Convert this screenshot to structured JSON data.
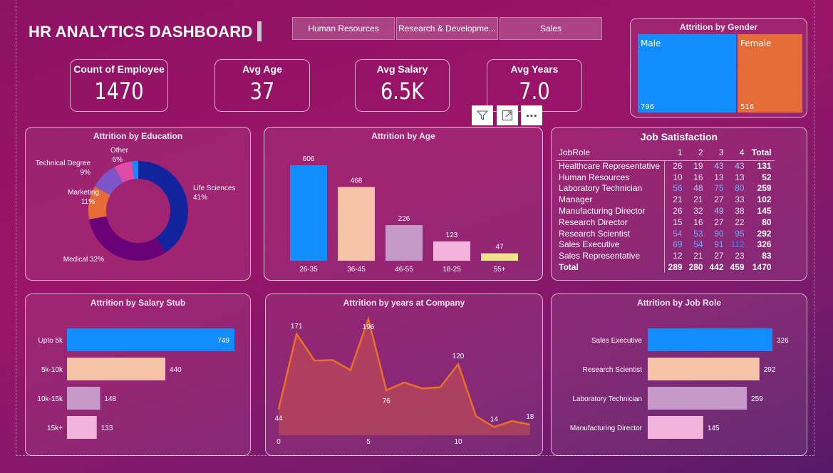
{
  "header": {
    "title": "HR ANALYTICS DASHBOARD",
    "slicers": [
      "Human Resources",
      "Research & Developme...",
      "Sales"
    ]
  },
  "kpis": [
    {
      "label": "Count of Employee",
      "value": "1470"
    },
    {
      "label": "Avg Age",
      "value": "37"
    },
    {
      "label": "Avg Salary",
      "value": "6.5K"
    },
    {
      "label": "Avg Years",
      "value": "7.0"
    }
  ],
  "visual_header": {
    "icons": [
      "filter-icon",
      "focus-mode-icon",
      "more-options-icon"
    ],
    "more": "⋯"
  },
  "gender": {
    "title": "Attrition by Gender",
    "items": [
      {
        "label": "Male",
        "value": "796",
        "color": "#118dff"
      },
      {
        "label": "Female",
        "value": "516",
        "color": "#e66c37"
      }
    ]
  },
  "chart_data": [
    {
      "type": "pie",
      "title": "Attrition by Education",
      "donut": true,
      "slices": [
        {
          "label": "Life Sciences",
          "pct": "41%",
          "value": 41,
          "color": "#12239e"
        },
        {
          "label": "Medical",
          "pct": "32%",
          "value": 32,
          "color": "#6a0078"
        },
        {
          "label": "Marketing",
          "pct": "11%",
          "value": 11,
          "color": "#e66c37"
        },
        {
          "label": "Technical Degree",
          "pct": "9%",
          "value": 9,
          "color": "#7c55c8"
        },
        {
          "label": "Other",
          "pct": "6%",
          "value": 6,
          "color": "#df49a8"
        },
        {
          "label": "",
          "pct": "",
          "value": 2,
          "color": "#118dff"
        }
      ]
    },
    {
      "type": "bar",
      "title": "Attrition by Age",
      "categories": [
        "26-35",
        "36-45",
        "46-55",
        "18-25",
        "55+"
      ],
      "values": [
        606,
        468,
        226,
        123,
        47
      ],
      "colors": [
        "#118dff",
        "#f4c3a8",
        "#c59acb",
        "#f1b5dc",
        "#efe38e"
      ]
    },
    {
      "type": "bar",
      "orientation": "horizontal",
      "title": "Attrition by Salary Stub",
      "categories": [
        "Upto 5k",
        "5k-10k",
        "10k-15k",
        "15k+"
      ],
      "values": [
        749,
        440,
        148,
        133
      ],
      "colors": [
        "#118dff",
        "#f4c3a8",
        "#c59acb",
        "#f1b5dc"
      ]
    },
    {
      "type": "area",
      "title": "Attrition by years at Company",
      "x": [
        0,
        1,
        2,
        3,
        4,
        5,
        6,
        7,
        8,
        9,
        10,
        11,
        12,
        13,
        14
      ],
      "values": [
        44,
        171,
        126,
        127,
        110,
        196,
        76,
        89,
        79,
        81,
        120,
        32,
        14,
        24,
        18
      ],
      "data_labels": {
        "0": "44",
        "1": "171",
        "5": "196",
        "6": "76",
        "10": "120",
        "12": "14",
        "14": "18"
      },
      "x_ticks": [
        "0",
        "5",
        "10"
      ],
      "color": "#e8702a"
    },
    {
      "type": "bar",
      "orientation": "horizontal",
      "title": "Attrition by Job Role",
      "categories": [
        "Sales Executive",
        "Research Scientist",
        "Laboratory Technician",
        "Manufacturing Director"
      ],
      "values": [
        326,
        292,
        259,
        145
      ],
      "colors": [
        "#118dff",
        "#f4c3a8",
        "#c59acb",
        "#f1b5dc"
      ]
    }
  ],
  "job_satisfaction": {
    "title": "Job Satisfaction",
    "columns": [
      "JobRole",
      "1",
      "2",
      "3",
      "4",
      "Total"
    ],
    "rows": [
      [
        "Healthcare Representative",
        "26",
        "19",
        "43",
        "43",
        "131"
      ],
      [
        "Human Resources",
        "10",
        "16",
        "13",
        "13",
        "52"
      ],
      [
        "Laboratory Technician",
        "56",
        "48",
        "75",
        "80",
        "259"
      ],
      [
        "Manager",
        "21",
        "21",
        "27",
        "33",
        "102"
      ],
      [
        "Manufacturing Director",
        "26",
        "32",
        "49",
        "38",
        "145"
      ],
      [
        "Research Director",
        "15",
        "16",
        "27",
        "22",
        "80"
      ],
      [
        "Research Scientist",
        "54",
        "53",
        "90",
        "95",
        "292"
      ],
      [
        "Sales Executive",
        "69",
        "54",
        "91",
        "112",
        "326"
      ],
      [
        "Sales Representative",
        "12",
        "21",
        "27",
        "23",
        "83"
      ]
    ],
    "total": [
      "Total",
      "289",
      "280",
      "442",
      "459",
      "1470"
    ]
  }
}
